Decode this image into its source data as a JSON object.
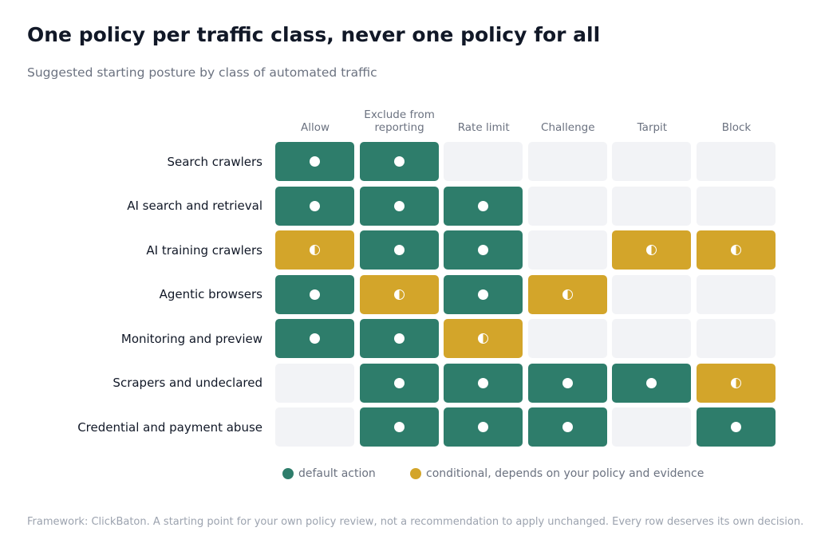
{
  "title": "One policy per traffic class, never one policy for all",
  "subtitle": "Suggested starting posture by class of automated traffic",
  "colors": {
    "default": "#2e7d6b",
    "conditional": "#d3a52a",
    "empty": "#f2f3f6"
  },
  "chart_data": {
    "type": "heatmap",
    "columns": [
      "Allow",
      "Exclude from reporting",
      "Rate limit",
      "Challenge",
      "Tarpit",
      "Block"
    ],
    "rows": [
      "Search crawlers",
      "AI search and retrieval",
      "AI training crawlers",
      "Agentic browsers",
      "Monitoring and preview",
      "Scrapers and undeclared",
      "Credential and payment abuse"
    ],
    "values": [
      [
        "default",
        "default",
        "none",
        "none",
        "none",
        "none"
      ],
      [
        "default",
        "default",
        "default",
        "none",
        "none",
        "none"
      ],
      [
        "conditional",
        "default",
        "default",
        "none",
        "conditional",
        "conditional"
      ],
      [
        "default",
        "conditional",
        "default",
        "conditional",
        "none",
        "none"
      ],
      [
        "default",
        "default",
        "conditional",
        "none",
        "none",
        "none"
      ],
      [
        "none",
        "default",
        "default",
        "default",
        "default",
        "conditional"
      ],
      [
        "none",
        "default",
        "default",
        "default",
        "none",
        "default"
      ]
    ],
    "legend": [
      {
        "key": "default",
        "label": "default action"
      },
      {
        "key": "conditional",
        "label": "conditional, depends on your policy and evidence"
      }
    ]
  },
  "footnote": "Framework: ClickBaton. A starting point for your own policy review, not a recommendation to apply unchanged. Every row deserves its own decision."
}
